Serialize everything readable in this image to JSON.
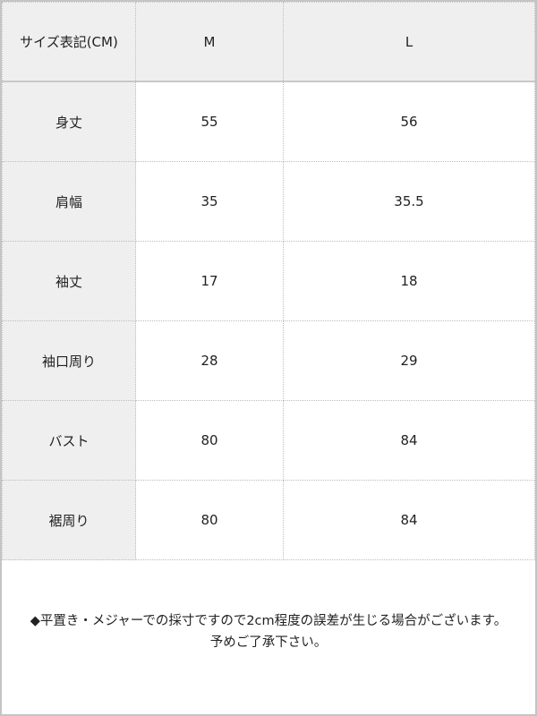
{
  "table": {
    "header": [
      "サイズ表記(CM)",
      "M",
      "L"
    ],
    "rows": [
      {
        "label": "身丈",
        "M": "55",
        "L": "56"
      },
      {
        "label": "肩幅",
        "M": "35",
        "L": "35.5"
      },
      {
        "label": "袖丈",
        "M": "17",
        "L": "18"
      },
      {
        "label": "袖口周り",
        "M": "28",
        "L": "29"
      },
      {
        "label": "バスト",
        "M": "80",
        "L": "84"
      },
      {
        "label": "裾周り",
        "M": "80",
        "L": "84"
      }
    ]
  },
  "note": {
    "line1": "◆平置き・メジャーでの採寸ですので2cm程度の誤差が生じる場合がございます。",
    "line2": "予めご了承下さい。"
  }
}
